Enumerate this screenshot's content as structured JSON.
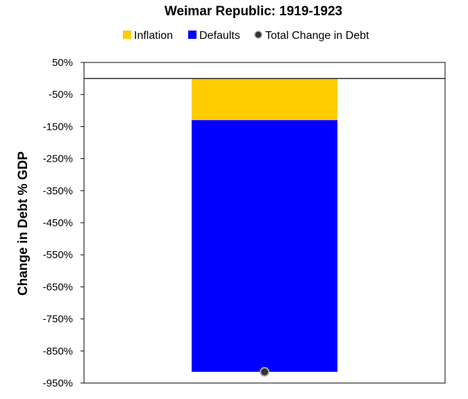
{
  "chart_data": {
    "type": "bar",
    "stacked": true,
    "title": "Weimar Republic: 1919-1923",
    "xlabel": "",
    "ylabel": "Change in Debt % GDP",
    "ylim": [
      -950,
      50
    ],
    "yticks": [
      50,
      -50,
      -150,
      -250,
      -350,
      -450,
      -550,
      -650,
      -750,
      -850,
      -950
    ],
    "ytick_labels": [
      "50%",
      "-50%",
      "-150%",
      "-250%",
      "-350%",
      "-450%",
      "-550%",
      "-650%",
      "-750%",
      "-850%",
      "-950%"
    ],
    "categories": [
      ""
    ],
    "series": [
      {
        "name": "Inflation",
        "values": [
          -130
        ],
        "color": "#FFCC00"
      },
      {
        "name": "Defaults",
        "values": [
          -785
        ],
        "color": "#0000FF"
      }
    ],
    "total": {
      "name": "Total Change in Debt",
      "values": [
        -915
      ],
      "color": "#333333"
    },
    "grid": false,
    "legend": "top"
  }
}
